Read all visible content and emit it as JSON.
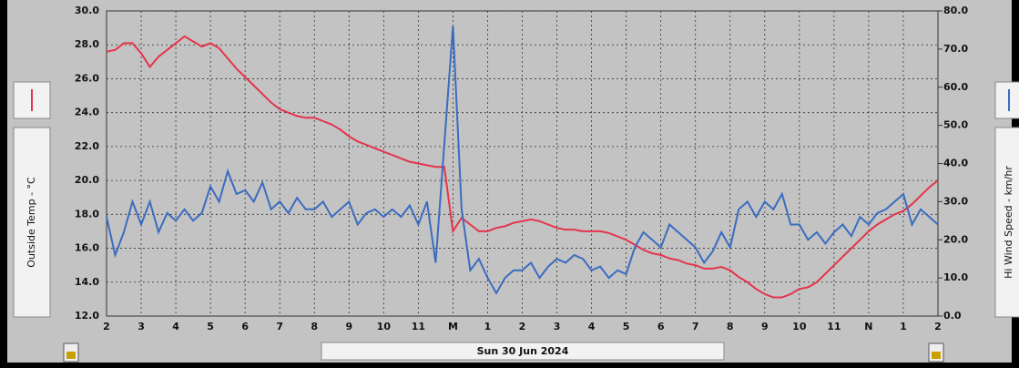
{
  "chart_data": {
    "type": "line",
    "xlim": [
      14,
      38
    ],
    "xticks": [
      {
        "value": 14,
        "label": "2"
      },
      {
        "value": 15,
        "label": "3"
      },
      {
        "value": 16,
        "label": "4"
      },
      {
        "value": 17,
        "label": "5"
      },
      {
        "value": 18,
        "label": "6"
      },
      {
        "value": 19,
        "label": "7"
      },
      {
        "value": 20,
        "label": "8"
      },
      {
        "value": 21,
        "label": "9"
      },
      {
        "value": 22,
        "label": "10"
      },
      {
        "value": 23,
        "label": "11"
      },
      {
        "value": 24,
        "label": "M"
      },
      {
        "value": 25,
        "label": "1"
      },
      {
        "value": 26,
        "label": "2"
      },
      {
        "value": 27,
        "label": "3"
      },
      {
        "value": 28,
        "label": "4"
      },
      {
        "value": 29,
        "label": "5"
      },
      {
        "value": 30,
        "label": "6"
      },
      {
        "value": 31,
        "label": "7"
      },
      {
        "value": 32,
        "label": "8"
      },
      {
        "value": 33,
        "label": "9"
      },
      {
        "value": 34,
        "label": "10"
      },
      {
        "value": 35,
        "label": "11"
      },
      {
        "value": 36,
        "label": "N"
      },
      {
        "value": 37,
        "label": "1"
      },
      {
        "value": 38,
        "label": "2"
      }
    ],
    "ylim": [
      12,
      30
    ],
    "yticks": [
      {
        "value": 12,
        "label": "12.0"
      },
      {
        "value": 14,
        "label": "14.0"
      },
      {
        "value": 16,
        "label": "16.0"
      },
      {
        "value": 18,
        "label": "18.0"
      },
      {
        "value": 20,
        "label": "20.0"
      },
      {
        "value": 22,
        "label": "22.0"
      },
      {
        "value": 24,
        "label": "24.0"
      },
      {
        "value": 26,
        "label": "26.0"
      },
      {
        "value": 28,
        "label": "28.0"
      },
      {
        "value": 30,
        "label": "30.0"
      }
    ],
    "y2lim": [
      0,
      80
    ],
    "y2ticks": [
      {
        "value": 0,
        "label": "0.0"
      },
      {
        "value": 10,
        "label": "10.0"
      },
      {
        "value": 20,
        "label": "20.0"
      },
      {
        "value": 30,
        "label": "30.0"
      },
      {
        "value": 40,
        "label": "40.0"
      },
      {
        "value": 50,
        "label": "50.0"
      },
      {
        "value": 60,
        "label": "60.0"
      },
      {
        "value": 70,
        "label": "70.0"
      },
      {
        "value": 80,
        "label": "80.0"
      }
    ],
    "ylabel": "Outside Temp - °C",
    "y2label": "Hi Wind Speed - km/hr",
    "xlabel": "Sun 30 Jun 2024",
    "grid": true,
    "x": [
      14,
      14.25,
      14.5,
      14.75,
      15,
      15.25,
      15.5,
      15.75,
      16,
      16.25,
      16.5,
      16.75,
      17,
      17.25,
      17.5,
      17.75,
      18,
      18.25,
      18.5,
      18.75,
      19,
      19.25,
      19.5,
      19.75,
      20,
      20.25,
      20.5,
      20.75,
      21,
      21.25,
      21.5,
      21.75,
      22,
      22.25,
      22.5,
      22.75,
      23,
      23.25,
      23.5,
      23.75,
      24,
      24.25,
      24.5,
      24.75,
      25,
      25.25,
      25.5,
      25.75,
      26,
      26.25,
      26.5,
      26.75,
      27,
      27.25,
      27.5,
      27.75,
      28,
      28.25,
      28.5,
      28.75,
      29,
      29.25,
      29.5,
      29.75,
      30,
      30.25,
      30.5,
      30.75,
      31,
      31.25,
      31.5,
      31.75,
      32,
      32.25,
      32.5,
      32.75,
      33,
      33.25,
      33.5,
      33.75,
      34,
      34.25,
      34.5,
      34.75,
      35,
      35.25,
      35.5,
      35.75,
      36,
      36.25,
      36.5,
      36.75,
      37,
      37.25,
      37.5,
      37.75,
      38
    ],
    "series": [
      {
        "name": "Outside Temp",
        "color": "#e4344c",
        "axis": "y",
        "values": [
          27.6,
          27.7,
          28.1,
          28.1,
          27.5,
          26.7,
          27.3,
          27.7,
          28.1,
          28.5,
          28.2,
          27.9,
          28.1,
          27.8,
          27.2,
          26.6,
          26.1,
          25.6,
          25.1,
          24.6,
          24.2,
          24.0,
          23.8,
          23.7,
          23.7,
          23.5,
          23.3,
          23.0,
          22.6,
          22.3,
          22.1,
          21.9,
          21.7,
          21.5,
          21.3,
          21.1,
          21.0,
          20.9,
          20.8,
          20.8,
          17.0,
          17.8,
          17.4,
          17.0,
          17.0,
          17.2,
          17.3,
          17.5,
          17.6,
          17.7,
          17.6,
          17.4,
          17.2,
          17.1,
          17.1,
          17.0,
          17.0,
          17.0,
          16.9,
          16.7,
          16.5,
          16.2,
          15.9,
          15.7,
          15.6,
          15.4,
          15.3,
          15.1,
          15.0,
          14.8,
          14.8,
          14.9,
          14.7,
          14.3,
          14.0,
          13.6,
          13.3,
          13.1,
          13.1,
          13.3,
          13.6,
          13.7,
          14.0,
          14.5,
          15.0,
          15.5,
          16.0,
          16.5,
          17.0,
          17.4,
          17.7,
          18.0,
          18.2,
          18.6,
          19.1,
          19.6,
          20.0
        ]
      },
      {
        "name": "Hi Wind Speed",
        "color": "#3a6cc0",
        "axis": "y2",
        "values": [
          26,
          16,
          22,
          30,
          24,
          30,
          22,
          27,
          25,
          28,
          25,
          27,
          34,
          30,
          38,
          32,
          33,
          30,
          35,
          28,
          30,
          27,
          31,
          28,
          28,
          30,
          26,
          28,
          30,
          24,
          27,
          28,
          26,
          28,
          26,
          29,
          24,
          30,
          14,
          45,
          76,
          28,
          12,
          15,
          10,
          6,
          10,
          12,
          12,
          14,
          10,
          13,
          15,
          14,
          16,
          15,
          12,
          13,
          10,
          12,
          11,
          18,
          22,
          20,
          18,
          24,
          22,
          20,
          18,
          14,
          17,
          22,
          18,
          28,
          30,
          26,
          30,
          28,
          32,
          24,
          24,
          20,
          22,
          19,
          22,
          24,
          21,
          26,
          24,
          27,
          28,
          30,
          32,
          24,
          28,
          26,
          24
        ]
      }
    ]
  }
}
